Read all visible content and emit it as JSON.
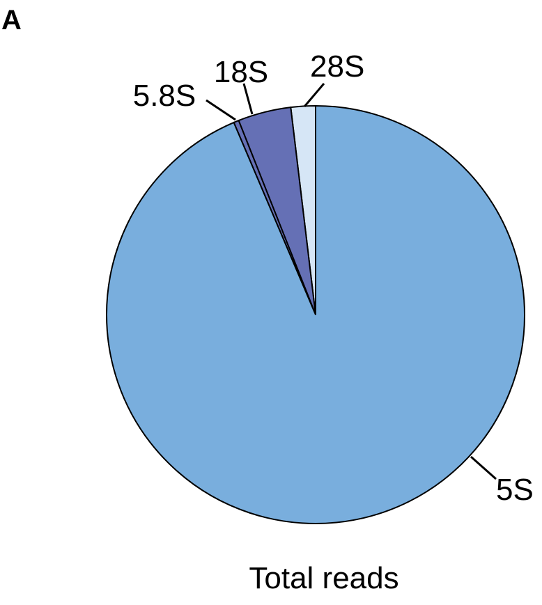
{
  "figure": {
    "panel_letter": "A"
  },
  "chart_data": {
    "type": "pie",
    "caption": "Total reads",
    "slices": [
      {
        "label": "28S",
        "value": 1.9,
        "color": "#d6e6f6"
      },
      {
        "label": "18S",
        "value": 4.1,
        "color": "#6570b5"
      },
      {
        "label": "5.8S",
        "value": 0.4,
        "color": "#6570b5"
      },
      {
        "label": "5S",
        "value": 93.6,
        "color": "#79aedd"
      }
    ],
    "start_angle": "12 o'clock",
    "direction": "counterclockwise"
  }
}
